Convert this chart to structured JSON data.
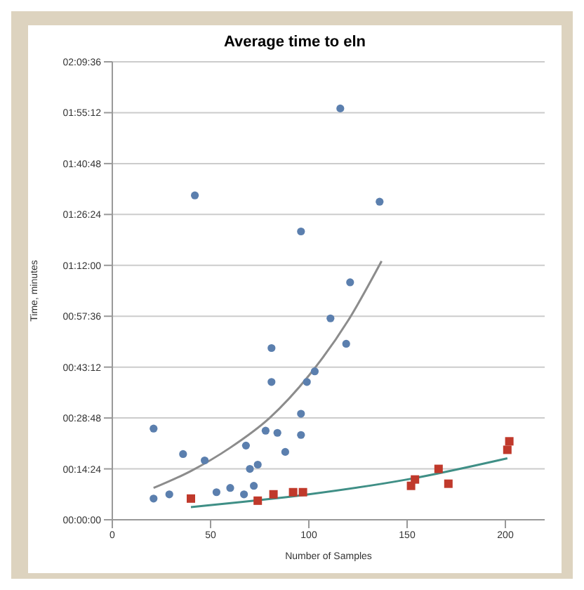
{
  "chart_data": {
    "type": "scatter",
    "title": "Average time to eln",
    "xlabel": "Number of Samples",
    "ylabel": "Time, minutes",
    "xlim": [
      0,
      220
    ],
    "xticks": [
      0,
      50,
      100,
      150,
      200
    ],
    "ylim": [
      0,
      2.16
    ],
    "yticks": [
      {
        "value": 0,
        "label": "00:00:00"
      },
      {
        "value": 0.24,
        "label": "00:14:24"
      },
      {
        "value": 0.48,
        "label": "00:28:48"
      },
      {
        "value": 0.72,
        "label": "00:43:12"
      },
      {
        "value": 0.96,
        "label": "00:57:36"
      },
      {
        "value": 1.2,
        "label": "01:12:00"
      },
      {
        "value": 1.44,
        "label": "01:26:24"
      },
      {
        "value": 1.68,
        "label": "01:40:48"
      },
      {
        "value": 1.92,
        "label": "01:55:12"
      },
      {
        "value": 2.16,
        "label": "02:09:36"
      }
    ],
    "grid": "y",
    "series": [
      {
        "color": "#5b7fae",
        "marker": "circle",
        "x": [
          42,
          116,
          136,
          96,
          121,
          111,
          81,
          119,
          81,
          99,
          103,
          21,
          36,
          47,
          68,
          78,
          84,
          96,
          96,
          88,
          70,
          74,
          72,
          67,
          60,
          53,
          29,
          21
        ],
        "values": [
          1.53,
          1.94,
          1.5,
          1.36,
          1.12,
          0.95,
          0.81,
          0.83,
          0.65,
          0.65,
          0.7,
          0.43,
          0.31,
          0.28,
          0.35,
          0.42,
          0.41,
          0.5,
          0.4,
          0.32,
          0.24,
          0.26,
          0.16,
          0.12,
          0.15,
          0.13,
          0.12,
          0.1
        ]
      },
      {
        "type": "scatter",
        "color": "#c0392b",
        "marker": "square",
        "x": [
          40,
          74,
          82,
          92,
          97,
          152,
          154,
          166,
          171,
          201,
          202
        ],
        "values": [
          0.1,
          0.09,
          0.12,
          0.13,
          0.13,
          0.16,
          0.19,
          0.24,
          0.17,
          0.33,
          0.37
        ]
      },
      {
        "type": "line",
        "color": "#8c8c8c",
        "x": [
          21,
          40,
          60,
          80,
          100,
          120,
          137
        ],
        "values": [
          0.15,
          0.23,
          0.34,
          0.48,
          0.68,
          0.94,
          1.22
        ]
      },
      {
        "type": "line",
        "color": "#3f8f86",
        "x": [
          40,
          100,
          150,
          201
        ],
        "values": [
          0.06,
          0.12,
          0.19,
          0.29
        ]
      }
    ]
  }
}
